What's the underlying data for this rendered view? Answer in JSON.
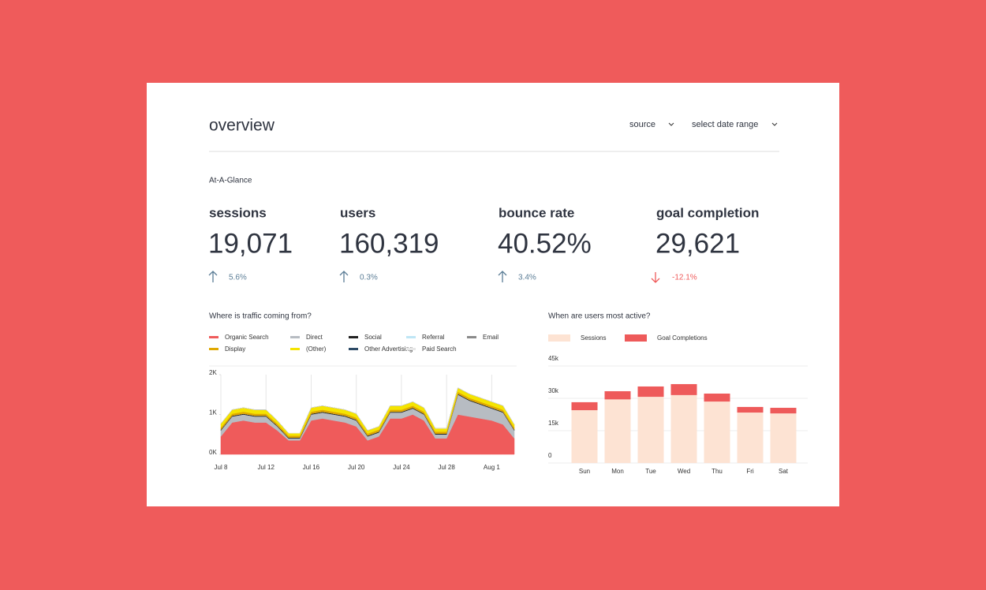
{
  "header": {
    "title": "overview",
    "filters": [
      "source",
      "select date range"
    ]
  },
  "section_title": "At-A-Glance",
  "kpis": [
    {
      "label": "sessions",
      "value": "19,071",
      "change": "5.6%",
      "trend": "up"
    },
    {
      "label": "users",
      "value": "160,319",
      "change": "0.3%",
      "trend": "up"
    },
    {
      "label": "bounce rate",
      "value": "40.52%",
      "change": "3.4%",
      "trend": "up"
    },
    {
      "label": "goal completion",
      "value": "29,621",
      "change": "-12.1%",
      "trend": "down"
    }
  ],
  "chart_data": [
    {
      "type": "area",
      "stacked": true,
      "title": "Where is traffic coming from?",
      "categories": [
        "Jul 8",
        null,
        null,
        null,
        "Jul 12",
        null,
        null,
        null,
        "Jul 16",
        null,
        null,
        null,
        "Jul 20",
        null,
        null,
        null,
        "Jul 24",
        null,
        null,
        null,
        "Jul 28",
        null,
        null,
        null,
        "Aug 1",
        null,
        null
      ],
      "series": [
        {
          "name": "Organic Search",
          "color": "#ef5b5b",
          "values": [
            450,
            800,
            850,
            800,
            800,
            600,
            350,
            350,
            850,
            900,
            850,
            800,
            700,
            350,
            450,
            900,
            900,
            1000,
            850,
            400,
            400,
            1000,
            950,
            900,
            850,
            750,
            400
          ]
        },
        {
          "name": "Direct",
          "color": "#b7bcc2",
          "values": [
            150,
            150,
            150,
            150,
            150,
            100,
            50,
            50,
            150,
            150,
            150,
            150,
            150,
            100,
            100,
            150,
            150,
            150,
            150,
            100,
            100,
            500,
            400,
            350,
            300,
            300,
            200
          ]
        },
        {
          "name": "Social",
          "color": "#222222",
          "values": [
            20,
            20,
            20,
            20,
            20,
            20,
            20,
            20,
            20,
            20,
            20,
            20,
            20,
            20,
            20,
            20,
            20,
            20,
            20,
            20,
            20,
            20,
            20,
            20,
            20,
            20,
            20
          ]
        },
        {
          "name": "Referral",
          "color": "#bfe6f5",
          "values": [
            0,
            0,
            0,
            0,
            0,
            0,
            0,
            0,
            0,
            0,
            0,
            0,
            0,
            0,
            0,
            0,
            0,
            0,
            0,
            0,
            0,
            0,
            0,
            0,
            0,
            0,
            0
          ]
        },
        {
          "name": "Email",
          "color": "#8a8a8a",
          "values": [
            0,
            0,
            0,
            0,
            0,
            0,
            0,
            0,
            0,
            0,
            0,
            0,
            0,
            0,
            0,
            0,
            0,
            0,
            0,
            0,
            0,
            0,
            0,
            0,
            0,
            0,
            0
          ]
        },
        {
          "name": "Display",
          "color": "#e0a800",
          "values": [
            50,
            50,
            50,
            50,
            50,
            50,
            50,
            50,
            50,
            50,
            50,
            50,
            50,
            50,
            50,
            50,
            50,
            50,
            50,
            50,
            50,
            50,
            50,
            50,
            50,
            50,
            50
          ]
        },
        {
          "name": "(Other)",
          "color": "#f5e400",
          "values": [
            100,
            100,
            100,
            100,
            100,
            80,
            60,
            60,
            100,
            100,
            100,
            100,
            100,
            80,
            80,
            100,
            100,
            100,
            100,
            80,
            80,
            100,
            100,
            100,
            100,
            100,
            80
          ]
        },
        {
          "name": "Other Advertising",
          "color": "#2d4a66",
          "values": [
            0,
            0,
            0,
            0,
            0,
            0,
            0,
            0,
            0,
            0,
            0,
            0,
            0,
            0,
            0,
            0,
            0,
            0,
            0,
            0,
            0,
            0,
            0,
            0,
            0,
            0,
            0
          ]
        },
        {
          "name": "Paid Search",
          "color": "#e6e6e6",
          "values": [
            0,
            0,
            0,
            0,
            0,
            0,
            0,
            0,
            0,
            0,
            0,
            0,
            0,
            0,
            0,
            0,
            0,
            0,
            0,
            0,
            0,
            0,
            0,
            0,
            0,
            0,
            0
          ]
        }
      ],
      "ylim": [
        0,
        2000
      ],
      "yticks": [
        {
          "value": 0,
          "label": "0K"
        },
        {
          "value": 1000,
          "label": "1K"
        },
        {
          "value": 2000,
          "label": "2K"
        }
      ],
      "grid": true
    },
    {
      "type": "bar",
      "stacked": true,
      "title": "When are users most active?",
      "categories": [
        "Sun",
        "Mon",
        "Tue",
        "Wed",
        "Thu",
        "Fri",
        "Sat"
      ],
      "series": [
        {
          "name": "Sessions",
          "color": "#fde3d3",
          "values": [
            24500,
            29500,
            30700,
            31500,
            28500,
            23400,
            23000
          ]
        },
        {
          "name": "Goal Completions",
          "color": "#ee5a5a",
          "values": [
            3700,
            3800,
            4800,
            5100,
            3700,
            2600,
            2600
          ]
        }
      ],
      "ylim": [
        0,
        45000
      ],
      "yticks": [
        0,
        {
          "value": 15000,
          "label": "15k"
        },
        {
          "value": 30000,
          "label": "30k"
        },
        {
          "value": 45000,
          "label": "45k"
        }
      ],
      "grid": true
    }
  ]
}
